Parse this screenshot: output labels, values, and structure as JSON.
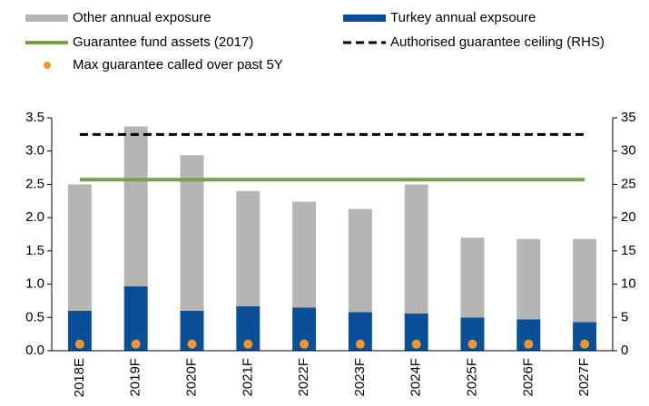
{
  "chart_data": {
    "type": "bar",
    "categories": [
      "2018E",
      "2019F",
      "2020F",
      "2021F",
      "2022F",
      "2023F",
      "2024F",
      "2025F",
      "2026F",
      "2027F"
    ],
    "series": [
      {
        "name": "Turkey annual expsoure",
        "type": "bar",
        "color": "#0b4f96",
        "values": [
          0.6,
          0.97,
          0.6,
          0.67,
          0.65,
          0.58,
          0.56,
          0.5,
          0.47,
          0.43
        ]
      },
      {
        "name": "Other annual exposure",
        "type": "bar",
        "color": "#b5b5b5",
        "values": [
          1.9,
          2.4,
          2.34,
          1.73,
          1.59,
          1.55,
          1.94,
          1.2,
          1.21,
          1.25
        ]
      },
      {
        "name": "Guarantee fund assets (2017)",
        "type": "line",
        "color": "#77a04a",
        "values": [
          2.57,
          2.57,
          2.57,
          2.57,
          2.57,
          2.57,
          2.57,
          2.57,
          2.57,
          2.57
        ]
      },
      {
        "name": "Authorised guarantee ceiling (RHS)",
        "type": "line",
        "dashed": true,
        "axis": "y2",
        "color": "#000000",
        "values": [
          32.5,
          32.5,
          32.5,
          32.5,
          32.5,
          32.5,
          32.5,
          32.5,
          32.5,
          32.5
        ]
      },
      {
        "name": "Max guarantee called over past 5Y",
        "type": "dot",
        "color": "#f0962e",
        "values": [
          0.1,
          0.1,
          0.1,
          0.1,
          0.1,
          0.1,
          0.1,
          0.1,
          0.1,
          0.1
        ]
      }
    ],
    "ylim": [
      0,
      3.5
    ],
    "yticks": [
      {
        "value": 0,
        "label": "0.0"
      },
      0.5,
      {
        "value": 1,
        "label": "1.0"
      },
      1.5,
      {
        "value": 2,
        "label": "2.0"
      },
      2.5,
      {
        "value": 3,
        "label": "3.0"
      },
      3.5
    ],
    "y2lim": [
      0,
      35
    ],
    "y2ticks": [
      0,
      5,
      10,
      15,
      20,
      25,
      30,
      35
    ]
  }
}
